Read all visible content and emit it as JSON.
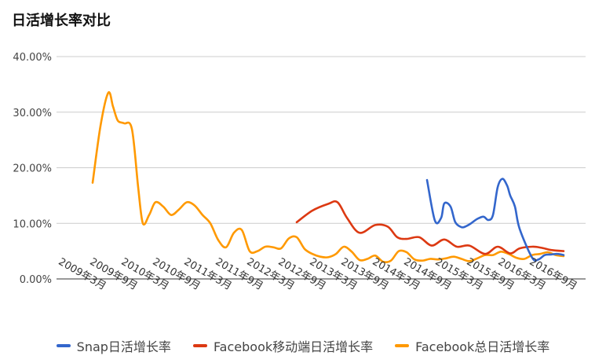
{
  "chart_data": {
    "type": "line",
    "title": "日活增长率对比",
    "xlabel": "",
    "ylabel": "",
    "ylim": [
      0,
      40
    ],
    "yticks": [
      "0.00%",
      "10.00%",
      "20.00%",
      "30.00%",
      "40.00%"
    ],
    "categories": [
      "2009年3月",
      "2009年9月",
      "2010年3月",
      "2010年9月",
      "2011年3月",
      "2011年9月",
      "2012年3月",
      "2012年9月",
      "2013年3月",
      "2013年9月",
      "2014年3月",
      "2014年9月",
      "2015年3月",
      "2015年9月",
      "2016年3月",
      "2016年9月"
    ],
    "grid": true,
    "legend_position": "bottom",
    "series": [
      {
        "name": "Snap日活增长率",
        "color": "#3366cc",
        "x": [
          10.65,
          10.9,
          11.1,
          11.2,
          11.4,
          11.55,
          11.75,
          11.9,
          12.05,
          12.25,
          12.45,
          12.6,
          12.75,
          12.9,
          13.05,
          13.2,
          13.3,
          13.45,
          13.6,
          14.0,
          14.2,
          14.4,
          14.6,
          14.8,
          15.0
        ],
        "values": [
          17.8,
          10.5,
          11.0,
          13.6,
          13.0,
          10.2,
          9.3,
          9.5,
          10.0,
          10.8,
          11.2,
          10.6,
          11.5,
          16.5,
          18.0,
          16.8,
          15.0,
          13.0,
          9.0,
          3.8,
          3.5,
          4.3,
          4.4,
          4.5,
          4.3
        ]
      },
      {
        "name": "Facebook移动端日活增长率",
        "color": "#dc3912",
        "x": [
          6.5,
          7.0,
          7.5,
          7.8,
          8.1,
          8.5,
          9.0,
          9.4,
          9.7,
          10.0,
          10.4,
          10.8,
          11.2,
          11.6,
          12.0,
          12.5,
          12.9,
          13.3,
          13.6,
          14.0,
          14.3,
          14.6,
          15.0
        ],
        "values": [
          10.2,
          12.3,
          13.5,
          13.8,
          11.0,
          8.3,
          9.7,
          9.4,
          7.5,
          7.2,
          7.5,
          6.0,
          7.1,
          5.8,
          6.0,
          4.5,
          5.8,
          4.6,
          5.5,
          5.8,
          5.6,
          5.2,
          5.0
        ]
      },
      {
        "name": "Facebook总日活增长率",
        "color": "#ff9900",
        "x": [
          0.0,
          0.25,
          0.5,
          0.65,
          0.8,
          1.0,
          1.25,
          1.45,
          1.6,
          1.8,
          2.0,
          2.25,
          2.5,
          2.75,
          3.0,
          3.25,
          3.5,
          3.75,
          4.0,
          4.25,
          4.5,
          4.75,
          5.0,
          5.25,
          5.5,
          5.75,
          6.0,
          6.25,
          6.5,
          6.75,
          7.0,
          7.25,
          7.5,
          7.75,
          8.0,
          8.25,
          8.5,
          8.75,
          9.0,
          9.25,
          9.5,
          9.75,
          10.0,
          10.25,
          10.5,
          10.75,
          11.0,
          11.25,
          11.5,
          11.75,
          12.0,
          12.25,
          12.5,
          12.75,
          13.0,
          13.25,
          13.5,
          13.75,
          14.0,
          14.25,
          14.5,
          14.75,
          15.0
        ],
        "values": [
          17.3,
          27.5,
          33.5,
          31.0,
          28.5,
          28.0,
          27.0,
          16.5,
          10.0,
          11.5,
          13.8,
          13.0,
          11.5,
          12.5,
          13.8,
          13.2,
          11.5,
          10.0,
          7.0,
          5.7,
          8.3,
          8.8,
          5.0,
          5.0,
          5.8,
          5.7,
          5.5,
          7.3,
          7.5,
          5.4,
          4.5,
          4.0,
          3.9,
          4.5,
          5.8,
          4.9,
          3.4,
          3.6,
          4.2,
          3.1,
          3.3,
          5.0,
          4.8,
          3.5,
          3.3,
          3.6,
          3.5,
          3.7,
          4.0,
          3.6,
          3.2,
          3.7,
          4.3,
          4.3,
          4.9,
          4.5,
          3.8,
          3.6,
          4.3,
          4.5,
          4.8,
          4.3,
          4.1
        ]
      }
    ]
  }
}
